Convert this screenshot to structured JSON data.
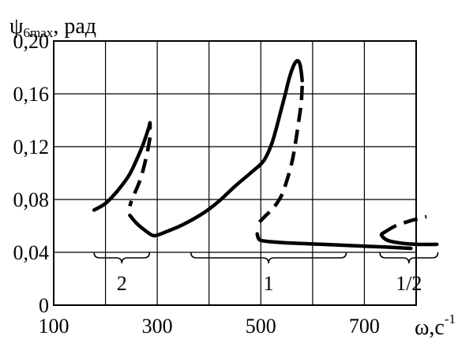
{
  "chart_data": {
    "type": "line",
    "title": "ψ",
    "title_subscript": "6max",
    "title_unit": ", рад",
    "xlabel": "ω,с",
    "xlabel_superscript": "-1",
    "xlim": [
      100,
      800
    ],
    "ylim": [
      0,
      0.2
    ],
    "x_ticks": [
      100,
      200,
      300,
      400,
      500,
      600,
      700,
      800
    ],
    "x_tick_labels": [
      "100",
      "",
      "300",
      "",
      "500",
      "",
      "700",
      ""
    ],
    "y_ticks": [
      0,
      0.04,
      0.08,
      0.12,
      0.16,
      0.2
    ],
    "y_tick_labels": [
      "0",
      "0,04",
      "0,08",
      "0,12",
      "0,16",
      "0,20"
    ],
    "grid": true,
    "series": [
      {
        "style": "solid",
        "x": [
          178,
          200,
          222,
          245,
          260,
          272,
          280,
          284,
          286,
          286
        ],
        "y": [
          0.072,
          0.077,
          0.086,
          0.098,
          0.11,
          0.121,
          0.13,
          0.135,
          0.138,
          0.134
        ]
      },
      {
        "style": "dashed",
        "x": [
          286,
          282,
          275,
          268,
          260,
          252,
          247
        ],
        "y": [
          0.127,
          0.118,
          0.106,
          0.096,
          0.088,
          0.081,
          0.075
        ]
      },
      {
        "style": "solid",
        "x": [
          247,
          260,
          275,
          290,
          300,
          320,
          350,
          390,
          420,
          450,
          480,
          505,
          520,
          530,
          540,
          548,
          555,
          563,
          570,
          575,
          578,
          580
        ],
        "y": [
          0.068,
          0.062,
          0.057,
          0.053,
          0.053,
          0.056,
          0.061,
          0.07,
          0.079,
          0.09,
          0.1,
          0.109,
          0.121,
          0.134,
          0.149,
          0.161,
          0.172,
          0.181,
          0.185,
          0.183,
          0.177,
          0.17
        ]
      },
      {
        "style": "dashed",
        "x": [
          580,
          578,
          573,
          567,
          560,
          550,
          540,
          525,
          510,
          500,
          493
        ],
        "y": [
          0.166,
          0.153,
          0.139,
          0.123,
          0.108,
          0.094,
          0.083,
          0.074,
          0.068,
          0.064,
          0.061
        ]
      },
      {
        "style": "solid",
        "x": [
          493,
          495,
          500,
          520,
          560,
          620,
          680,
          740,
          790
        ],
        "y": [
          0.054,
          0.051,
          0.049,
          0.048,
          0.047,
          0.046,
          0.045,
          0.044,
          0.043
        ]
      },
      {
        "style": "dashed",
        "x": [
          738,
          760,
          790,
          820
        ],
        "y": [
          0.055,
          0.06,
          0.064,
          0.067
        ]
      },
      {
        "style": "solid",
        "x": [
          738,
          733,
          745,
          770,
          800,
          840
        ],
        "y": [
          0.055,
          0.053,
          0.049,
          0.047,
          0.046,
          0.046
        ]
      }
    ],
    "regions": [
      {
        "label": "2",
        "x_start": 178,
        "x_end": 285
      },
      {
        "label": "1",
        "x_start": 365,
        "x_end": 665
      },
      {
        "label": "1/2",
        "x_start": 730,
        "x_end": 842
      }
    ],
    "colors": {
      "line": "#000000",
      "grid": "#000000",
      "background": "#ffffff"
    }
  }
}
